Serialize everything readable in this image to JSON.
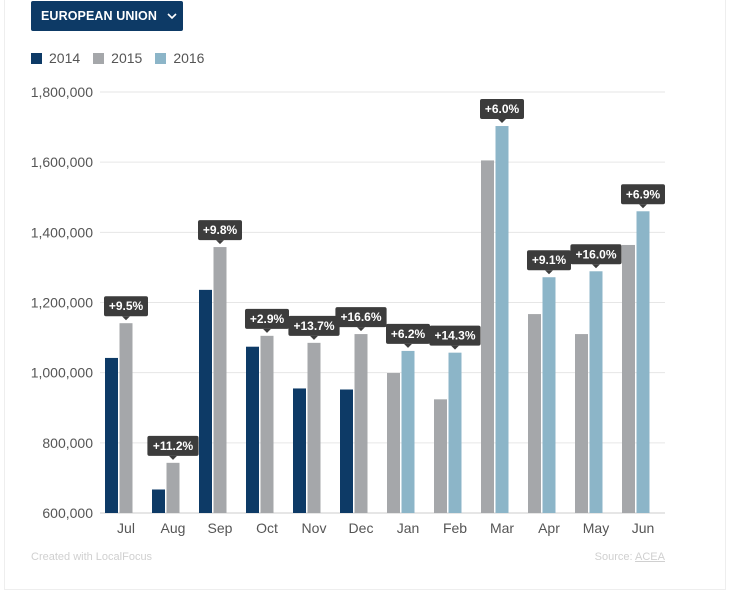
{
  "header": {
    "region_label": "EUROPEAN UNION"
  },
  "legend": [
    {
      "label": "2014",
      "color": "#0d3a66"
    },
    {
      "label": "2015",
      "color": "#a5a7aa"
    },
    {
      "label": "2016",
      "color": "#8cb5c8"
    }
  ],
  "footer": {
    "credit": "Created with LocalFocus",
    "source_prefix": "Source:",
    "source_link": "ACEA"
  },
  "chart_data": {
    "type": "bar",
    "categories": [
      "Jul",
      "Aug",
      "Sep",
      "Oct",
      "Nov",
      "Dec",
      "Jan",
      "Feb",
      "Mar",
      "Apr",
      "May",
      "Jun"
    ],
    "series": [
      {
        "name": "2014",
        "color": "#0d3a66",
        "values": [
          1042000,
          667000,
          1236000,
          1074000,
          955000,
          952000,
          null,
          null,
          null,
          null,
          null,
          null
        ]
      },
      {
        "name": "2015",
        "color": "#a5a7aa",
        "values": [
          1141000,
          743000,
          1358000,
          1105000,
          1085000,
          1110000,
          999000,
          924000,
          1605000,
          1167000,
          1110000,
          1364000
        ]
      },
      {
        "name": "2016",
        "color": "#8cb5c8",
        "values": [
          null,
          null,
          null,
          null,
          null,
          null,
          1062000,
          1057000,
          1703000,
          1272000,
          1289000,
          1460000
        ]
      }
    ],
    "annotations": [
      "+9.5%",
      "+11.2%",
      "+9.8%",
      "+2.9%",
      "+13.7%",
      "+16.6%",
      "+6.2%",
      "+14.3%",
      "+6.0%",
      "+9.1%",
      "+16.0%",
      "+6.9%"
    ],
    "yticks": [
      "1,800,000",
      "1,600,000",
      "1,400,000",
      "1,200,000",
      "1,000,000",
      "800,000",
      "600,000"
    ],
    "ylim": [
      600000,
      1800000
    ],
    "grid": true,
    "legend_position": "top-left"
  }
}
